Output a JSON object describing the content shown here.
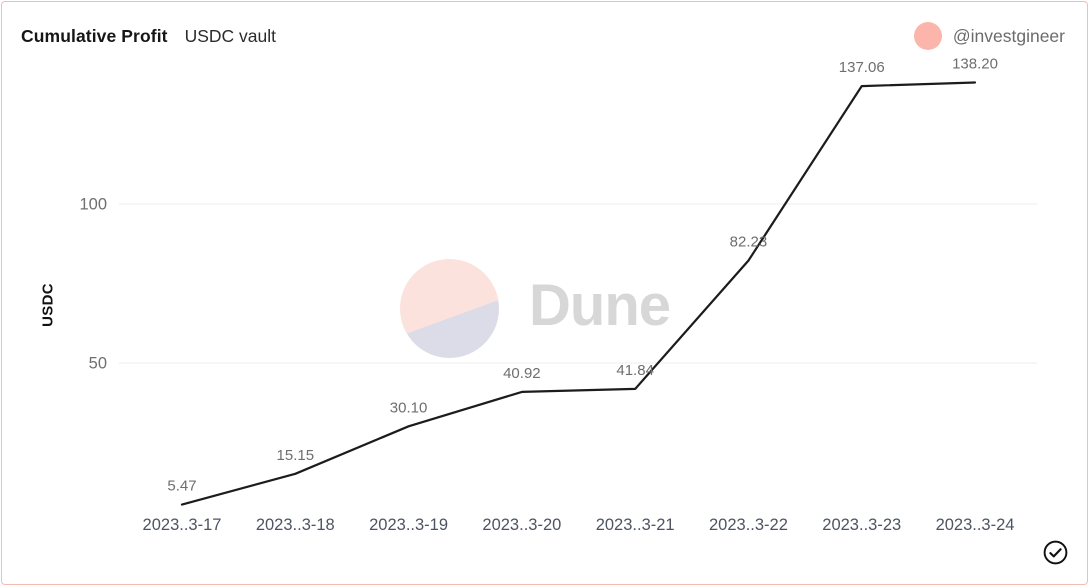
{
  "header": {
    "title": "Cumulative Profit",
    "subtitle": "USDC vault",
    "attribution_handle": "@investgineer"
  },
  "watermark": {
    "brand": "Dune",
    "icon": "dune-logo-icon"
  },
  "chart_data": {
    "type": "line",
    "title": "Cumulative Profit",
    "subtitle": "USDC vault",
    "ylabel": "USDC",
    "xlabel": "",
    "categories": [
      "2023..3-17",
      "2023..3-18",
      "2023..3-19",
      "2023..3-20",
      "2023..3-21",
      "2023..3-22",
      "2023..3-23",
      "2023..3-24"
    ],
    "values": [
      5.47,
      15.15,
      30.1,
      40.92,
      41.84,
      82.23,
      137.06,
      138.2
    ],
    "y_ticks": [
      {
        "value": 50,
        "label": "50"
      },
      {
        "value": 100,
        "label": "100"
      }
    ],
    "ylim": [
      0,
      145
    ],
    "grid": "horizontal",
    "legend_position": "none",
    "point_labels_visible": true,
    "line_color": "#1c1c1c",
    "point_label_color": "#6e6e6e",
    "tick_label_color": "#6f6f6f",
    "x_label_color": "#4d5562",
    "grid_color": "#ececec"
  },
  "colors": {
    "card_border": "#f5bdb2",
    "avatar": "#fbb5aa",
    "watermark_pink": "#fbe2dc",
    "watermark_lavender": "#dcdce9",
    "watermark_text": "#d7d7d7"
  },
  "footer": {
    "status_icon": "check-circle-icon"
  }
}
